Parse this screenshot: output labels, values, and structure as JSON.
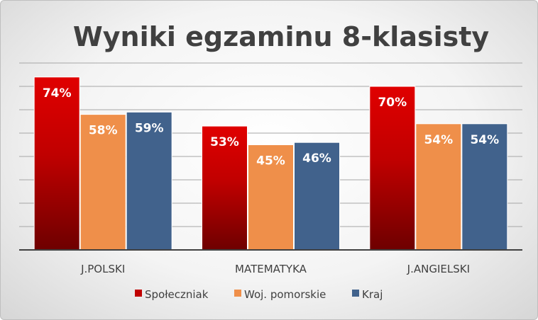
{
  "chart_data": {
    "type": "bar",
    "title": "Wyniki egzaminu 8-klasisty",
    "categories": [
      "J.POLSKI",
      "MATEMATYKA",
      "J.ANGIELSKI"
    ],
    "series": [
      {
        "name": "Społeczniak",
        "values": [
          74,
          53,
          70
        ],
        "labels": [
          "74%",
          "53%",
          "70%"
        ],
        "color": "#d00000",
        "color_dark": "#6e0000"
      },
      {
        "name": "Woj. pomorskie",
        "values": [
          58,
          45,
          54
        ],
        "labels": [
          "58%",
          "45%",
          "54%"
        ],
        "color": "#ef8f4a"
      },
      {
        "name": "Kraj",
        "values": [
          59,
          46,
          54
        ],
        "labels": [
          "59%",
          "46%",
          "54%"
        ],
        "color": "#41628c"
      }
    ],
    "ylim": [
      0,
      80
    ],
    "grid": true,
    "gridline_step": 10,
    "legend": "bottom",
    "xlabel": "",
    "ylabel": ""
  }
}
